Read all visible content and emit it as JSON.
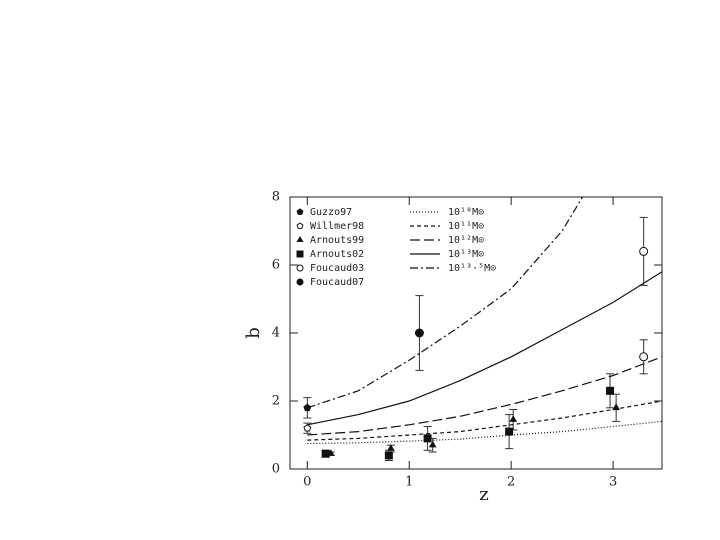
{
  "chart_data": {
    "type": "scatter",
    "x_label": "z",
    "y_label": "b",
    "xlim": [
      -0.17,
      3.48
    ],
    "ylim": [
      0,
      8
    ],
    "xticks": [
      0,
      1,
      2,
      3
    ],
    "yticks": [
      0,
      2,
      4,
      6,
      8
    ],
    "series": [
      {
        "name": "Guzzo97",
        "style": "points",
        "marker": "pentagon-filled",
        "color": "#111",
        "x": [
          0.0
        ],
        "values": [
          1.8
        ],
        "errors": [
          0.3
        ]
      },
      {
        "name": "Willmer98",
        "style": "points",
        "marker": "pentagon-open",
        "color": "#111",
        "x": [
          0.0
        ],
        "values": [
          1.2
        ],
        "errors": [
          0.15
        ]
      },
      {
        "name": "Arnouts99",
        "style": "points",
        "marker": "triangle",
        "color": "#111",
        "x": [
          0.23,
          0.82,
          1.23,
          2.02,
          3.03
        ],
        "values": [
          0.45,
          0.6,
          0.7,
          1.45,
          1.8
        ],
        "errors": [
          0.05,
          0.1,
          0.2,
          0.3,
          0.4
        ]
      },
      {
        "name": "Arnouts02",
        "style": "points",
        "marker": "square",
        "color": "#111",
        "x": [
          0.18,
          0.8,
          1.18,
          1.98,
          2.97
        ],
        "values": [
          0.45,
          0.4,
          0.9,
          1.1,
          2.3
        ],
        "errors": [
          0.1,
          0.15,
          0.35,
          0.5,
          0.5
        ]
      },
      {
        "name": "Foucaud03",
        "style": "points",
        "marker": "circle-open",
        "color": "#111",
        "x": [
          3.3,
          3.3
        ],
        "values": [
          6.4,
          3.3
        ],
        "errors": [
          1.0,
          0.5
        ]
      },
      {
        "name": "Foucaud07",
        "style": "points",
        "marker": "circle-filled",
        "color": "#111",
        "x": [
          1.1
        ],
        "values": [
          4.0
        ],
        "errors": [
          1.1
        ]
      },
      {
        "name": "10¹⁰M⊙",
        "style": "line",
        "dash": "1,2",
        "color": "#111",
        "x": [
          0,
          0.5,
          1,
          1.5,
          2,
          2.5,
          3,
          3.48
        ],
        "values": [
          0.75,
          0.77,
          0.82,
          0.88,
          1.0,
          1.1,
          1.25,
          1.4
        ]
      },
      {
        "name": "10¹¹M⊙",
        "style": "line",
        "dash": "4,3",
        "color": "#111",
        "x": [
          0,
          0.5,
          1,
          1.5,
          2,
          2.5,
          3,
          3.48
        ],
        "values": [
          0.85,
          0.9,
          1.0,
          1.1,
          1.3,
          1.5,
          1.75,
          2.0
        ]
      },
      {
        "name": "10¹²M⊙",
        "style": "line",
        "dash": "10,4",
        "color": "#111",
        "x": [
          0,
          0.5,
          1,
          1.5,
          2,
          2.5,
          3,
          3.48
        ],
        "values": [
          1.0,
          1.1,
          1.3,
          1.55,
          1.9,
          2.3,
          2.75,
          3.3
        ]
      },
      {
        "name": "10¹³M⊙",
        "style": "line",
        "dash": "none",
        "color": "#111",
        "x": [
          0,
          0.5,
          1,
          1.5,
          2,
          2.5,
          3,
          3.48
        ],
        "values": [
          1.3,
          1.6,
          2.0,
          2.6,
          3.3,
          4.1,
          4.9,
          5.8
        ]
      },
      {
        "name": "10¹³·⁵M⊙",
        "style": "line",
        "dash": "8,3,2,3",
        "color": "#111",
        "x": [
          0,
          0.5,
          1,
          1.5,
          2,
          2.5,
          2.7
        ],
        "values": [
          1.8,
          2.3,
          3.2,
          4.2,
          5.3,
          7.0,
          8.0
        ]
      }
    ]
  }
}
